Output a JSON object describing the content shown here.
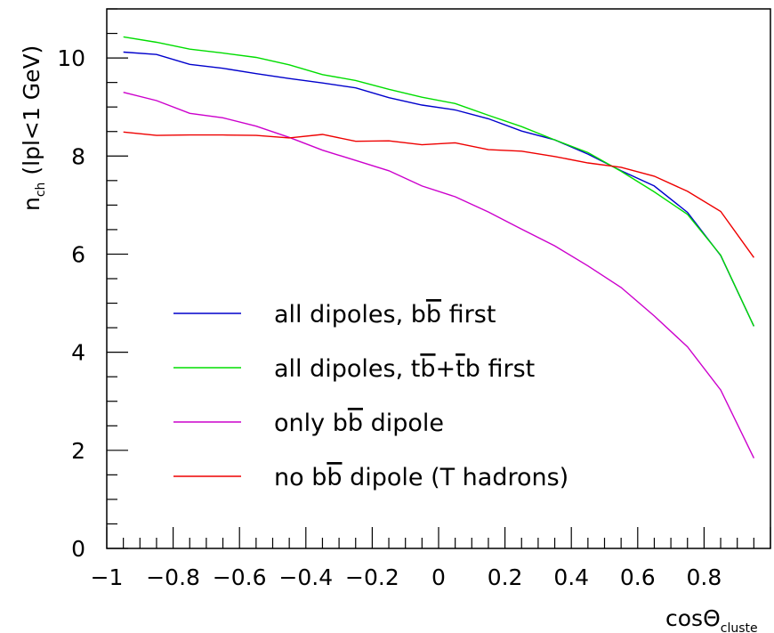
{
  "chart_data": {
    "type": "line",
    "xlabel": "cosΘ",
    "xlabel_sub": "cluste",
    "ylabel": "n",
    "ylabel_sub": "ch",
    "ylabel_rest": " (lpl<1 GeV)",
    "xlim": [
      -1,
      1
    ],
    "ylim": [
      0,
      11
    ],
    "x_ticks": [
      -1,
      -0.8,
      -0.6,
      -0.4,
      -0.2,
      0,
      0.2,
      0.4,
      0.6,
      0.8
    ],
    "x_tick_labels": [
      "−1",
      "−0.8",
      "−0.6",
      "−0.4",
      "−0.2",
      "0",
      "0.2",
      "0.4",
      "0.6",
      "0.8"
    ],
    "y_ticks": [
      0,
      2,
      4,
      6,
      8,
      10
    ],
    "y_tick_labels": [
      "0",
      "2",
      "4",
      "6",
      "8",
      "10"
    ],
    "legend_placement": "lower-left",
    "x": [
      -0.95,
      -0.85,
      -0.75,
      -0.65,
      -0.55,
      -0.45,
      -0.35,
      -0.25,
      -0.15,
      -0.05,
      0.05,
      0.15,
      0.25,
      0.35,
      0.45,
      0.55,
      0.65,
      0.75,
      0.85,
      0.95
    ],
    "series": [
      {
        "name": "all dipoles, bb first",
        "name_parts": [
          "all dipoles, b",
          "b",
          " first"
        ],
        "color": "#0000cc",
        "values": [
          10.12,
          10.07,
          9.87,
          9.79,
          9.68,
          9.58,
          9.49,
          9.39,
          9.19,
          9.04,
          8.94,
          8.76,
          8.51,
          8.33,
          8.04,
          7.7,
          7.39,
          6.85,
          5.97,
          4.53
        ]
      },
      {
        "name": "all dipoles, tb+tb first",
        "name_parts": [
          "all dipoles, t",
          "b",
          "+",
          "t",
          "b first"
        ],
        "color": "#00dd00",
        "values": [
          10.43,
          10.32,
          10.18,
          10.1,
          10.01,
          9.86,
          9.66,
          9.54,
          9.36,
          9.2,
          9.07,
          8.83,
          8.6,
          8.33,
          8.07,
          7.69,
          7.27,
          6.81,
          5.98,
          4.53
        ]
      },
      {
        "name": "only bb dipole",
        "name_parts": [
          "only b",
          "b",
          " dipole"
        ],
        "color": "#cc00cc",
        "values": [
          9.3,
          9.13,
          8.87,
          8.78,
          8.61,
          8.38,
          8.12,
          7.91,
          7.7,
          7.39,
          7.17,
          6.86,
          6.51,
          6.17,
          5.76,
          5.32,
          4.74,
          4.11,
          3.23,
          1.84
        ]
      },
      {
        "name": "no bb dipole (T hadrons)",
        "name_parts": [
          "no b",
          "b",
          " dipole (T hadrons)"
        ],
        "color": "#ee0000",
        "values": [
          8.49,
          8.42,
          8.43,
          8.43,
          8.42,
          8.37,
          8.44,
          8.3,
          8.31,
          8.23,
          8.27,
          8.13,
          8.1,
          7.99,
          7.86,
          7.77,
          7.59,
          7.28,
          6.87,
          5.93
        ]
      }
    ]
  }
}
